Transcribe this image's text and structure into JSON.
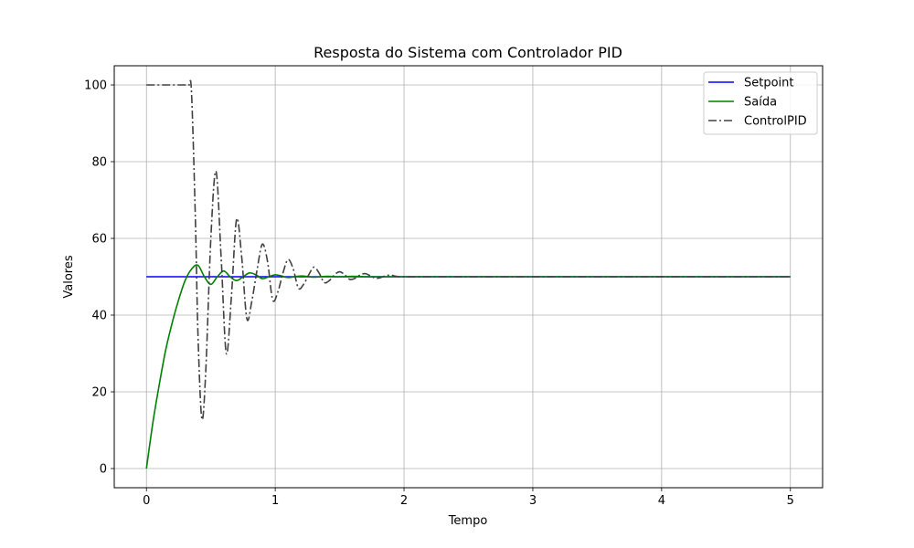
{
  "chart_data": {
    "type": "line",
    "title": "Resposta do Sistema com Controlador PID",
    "xlabel": "Tempo",
    "ylabel": "Valores",
    "xlim": [
      -0.25,
      5.25
    ],
    "ylim": [
      -5,
      105
    ],
    "xticks": [
      "0",
      "1",
      "2",
      "3",
      "4",
      "5"
    ],
    "yticks": [
      "0",
      "20",
      "40",
      "60",
      "80",
      "100"
    ],
    "grid": true,
    "legend_position": "top-right",
    "series": [
      {
        "name": "Setpoint",
        "color": "#0000ff",
        "style": "solid",
        "x": [
          0,
          5
        ],
        "y": [
          50,
          50
        ]
      },
      {
        "name": "Saída",
        "color": "#008000",
        "style": "solid",
        "x": [
          0,
          0.05,
          0.1,
          0.15,
          0.2,
          0.25,
          0.3,
          0.35,
          0.4,
          0.45,
          0.5,
          0.55,
          0.6,
          0.65,
          0.7,
          0.75,
          0.8,
          0.85,
          0.9,
          0.95,
          1.0,
          1.05,
          1.1,
          1.2,
          1.3,
          1.4,
          1.5,
          1.6,
          1.7,
          1.8,
          1.9,
          2.0,
          2.2,
          2.5,
          3.0,
          4.0,
          5.0
        ],
        "y": [
          0,
          12,
          22,
          31,
          38,
          44,
          49,
          52,
          53,
          50,
          48,
          50,
          51.5,
          50,
          49,
          50,
          51,
          50.5,
          49.5,
          50,
          50.5,
          50.2,
          49.8,
          50.2,
          49.9,
          50.1,
          50.0,
          50.1,
          50.0,
          50.0,
          50.0,
          50.0,
          50,
          50,
          50,
          50,
          50
        ]
      },
      {
        "name": "ControlPID",
        "color": "#404040",
        "style": "dashdot",
        "x": [
          0,
          0.05,
          0.1,
          0.15,
          0.2,
          0.25,
          0.3,
          0.33,
          0.35,
          0.38,
          0.4,
          0.43,
          0.46,
          0.5,
          0.54,
          0.58,
          0.62,
          0.66,
          0.7,
          0.74,
          0.78,
          0.82,
          0.86,
          0.9,
          0.94,
          0.98,
          1.02,
          1.06,
          1.1,
          1.14,
          1.18,
          1.22,
          1.26,
          1.3,
          1.34,
          1.38,
          1.42,
          1.46,
          1.5,
          1.54,
          1.58,
          1.62,
          1.66,
          1.7,
          1.74,
          1.78,
          1.82,
          1.86,
          1.9,
          1.94,
          2.0,
          2.2,
          2.5,
          3.0,
          4.0,
          5.0
        ],
        "y": [
          100,
          100,
          100,
          100,
          100,
          100,
          100,
          100,
          98,
          65,
          35,
          13,
          25,
          60,
          77.5,
          55,
          30,
          45,
          65,
          55,
          39,
          44,
          52,
          58.5,
          54,
          44,
          46,
          51,
          54.5,
          52,
          47,
          48,
          50.5,
          52.5,
          51,
          48.5,
          49,
          50.5,
          51.3,
          50.5,
          49.3,
          49.6,
          50.5,
          50.8,
          50.2,
          49.6,
          49.8,
          50.3,
          50.4,
          50.1,
          50,
          50,
          50,
          50,
          50,
          50
        ]
      }
    ]
  }
}
